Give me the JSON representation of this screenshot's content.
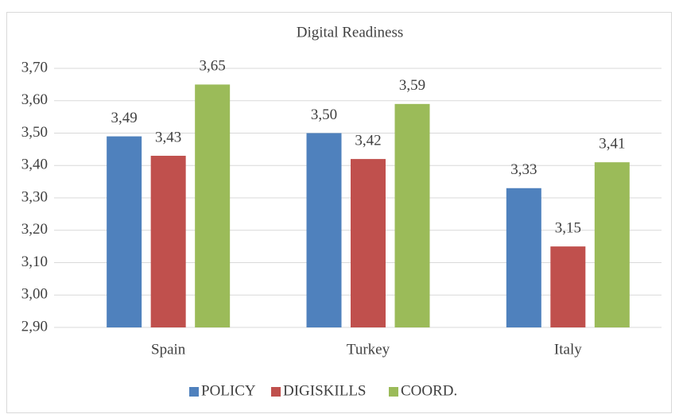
{
  "chart_data": {
    "type": "bar",
    "title": "Digital Readiness",
    "categories": [
      "Spain",
      "Turkey",
      "Italy"
    ],
    "series": [
      {
        "name": "POLICY",
        "color": "#4f81bd",
        "values": [
          3.49,
          3.5,
          3.33
        ],
        "value_labels": [
          "3,49",
          "3,50",
          "3,33"
        ]
      },
      {
        "name": "DIGISKILLS",
        "color": "#c0504d",
        "values": [
          3.43,
          3.42,
          3.15
        ],
        "value_labels": [
          "3,43",
          "3,42",
          "3,15"
        ]
      },
      {
        "name": "COORD.",
        "color": "#9bbb59",
        "values": [
          3.65,
          3.59,
          3.41
        ],
        "value_labels": [
          "3,65",
          "3,59",
          "3,41"
        ]
      }
    ],
    "ylim": [
      2.9,
      3.7
    ],
    "yticks": [
      {
        "value": 2.9,
        "label": "2,90"
      },
      {
        "value": 3.0,
        "label": "3,00"
      },
      {
        "value": 3.1,
        "label": "3,10"
      },
      {
        "value": 3.2,
        "label": "3,20"
      },
      {
        "value": 3.3,
        "label": "3,30"
      },
      {
        "value": 3.4,
        "label": "3,40"
      },
      {
        "value": 3.5,
        "label": "3,50"
      },
      {
        "value": 3.6,
        "label": "3,60"
      },
      {
        "value": 3.7,
        "label": "3,70"
      }
    ],
    "grid": true,
    "legend": "bottom"
  }
}
